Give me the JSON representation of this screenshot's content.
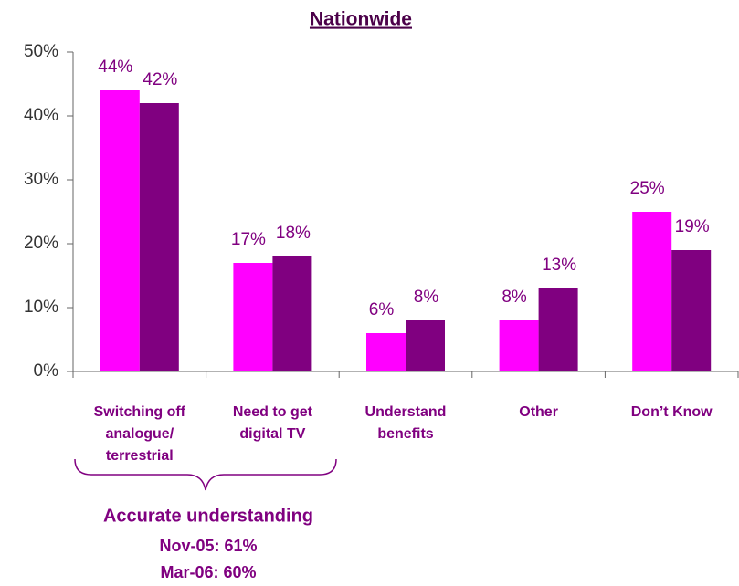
{
  "chart_data": {
    "type": "bar",
    "title": "Nationwide",
    "categories": [
      [
        "Switching off",
        "analogue/",
        "terrestrial"
      ],
      [
        "Need to get",
        "digital TV"
      ],
      [
        "Understand",
        "benefits"
      ],
      [
        "Other"
      ],
      [
        "Don’t Know"
      ]
    ],
    "series": [
      {
        "color": "#ff00ff",
        "values": [
          44,
          17,
          6,
          8,
          25
        ],
        "value_labels": [
          "44%",
          "17%",
          "6%",
          "8%",
          "25%"
        ]
      },
      {
        "color": "#800080",
        "values": [
          42,
          18,
          8,
          13,
          19
        ],
        "value_labels": [
          "42%",
          "18%",
          "8%",
          "13%",
          "19%"
        ]
      }
    ],
    "ylim": [
      0,
      50
    ],
    "yticks": [
      {
        "value": 0,
        "label": "0%"
      },
      {
        "value": 10,
        "label": "10%"
      },
      {
        "value": 20,
        "label": "20%"
      },
      {
        "value": 30,
        "label": "30%"
      },
      {
        "value": 40,
        "label": "40%"
      },
      {
        "value": 50,
        "label": "50%"
      }
    ],
    "annotations": [
      "Accurate understanding",
      "Nov-05: 61%",
      "Mar-06: 60%"
    ]
  }
}
